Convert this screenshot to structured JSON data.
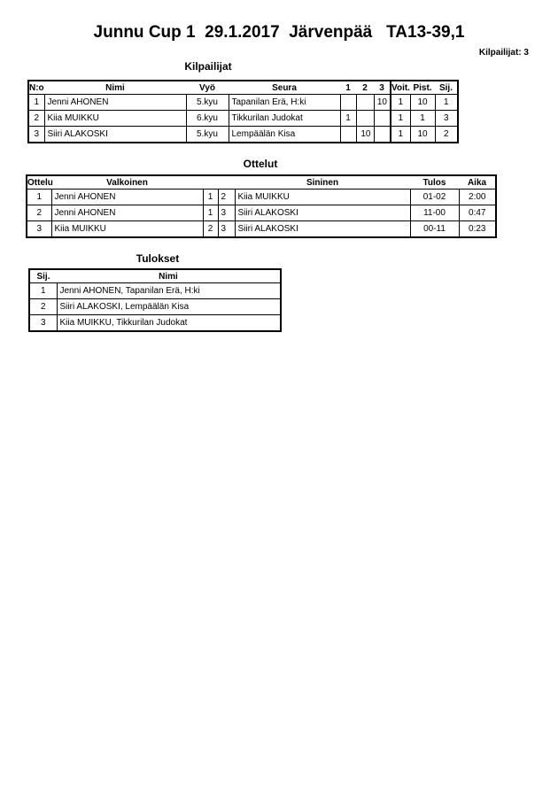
{
  "header": {
    "title": "Junnu Cup 1  29.1.2017  Järvenpää   TA13-39,1",
    "competitor_count": "Kilpailijat: 3"
  },
  "competitors": {
    "heading": "Kilpailijat",
    "columns": [
      "N:o",
      "Nimi",
      "Vyö",
      "Seura",
      "1",
      "2",
      "3",
      "Voit.",
      "Pist.",
      "Sij."
    ],
    "rows": [
      [
        "1",
        "Jenni AHONEN",
        "5.kyu",
        "Tapanilan Erä, H:ki",
        "",
        "",
        "10",
        "1",
        "10",
        "1"
      ],
      [
        "2",
        "Kiia MUIKKU",
        "6.kyu",
        "Tikkurilan Judokat",
        "1",
        "",
        "",
        "1",
        "1",
        "3"
      ],
      [
        "3",
        "Siiri ALAKOSKI",
        "5.kyu",
        "Lempäälän Kisa",
        "",
        "10",
        "",
        "1",
        "10",
        "2"
      ]
    ]
  },
  "matches": {
    "heading": "Ottelut",
    "columns": [
      "Ottelu",
      "Valkoinen",
      "",
      "",
      "Sininen",
      "Tulos",
      "Aika"
    ],
    "rows": [
      [
        "1",
        "Jenni AHONEN",
        "1",
        "2",
        "Kiia MUIKKU",
        "01-02",
        "2:00"
      ],
      [
        "2",
        "Jenni AHONEN",
        "1",
        "3",
        "Siiri ALAKOSKI",
        "11-00",
        "0:47"
      ],
      [
        "3",
        "Kiia MUIKKU",
        "2",
        "3",
        "Siiri ALAKOSKI",
        "00-11",
        "0:23"
      ]
    ]
  },
  "results": {
    "heading": "Tulokset",
    "columns": [
      "Sij.",
      "Nimi"
    ],
    "rows": [
      [
        "1",
        "Jenni AHONEN, Tapanilan Erä, H:ki"
      ],
      [
        "2",
        "Siiri ALAKOSKI, Lempäälän Kisa"
      ],
      [
        "3",
        "Kiia MUIKKU, Tikkurilan Judokat"
      ]
    ]
  }
}
